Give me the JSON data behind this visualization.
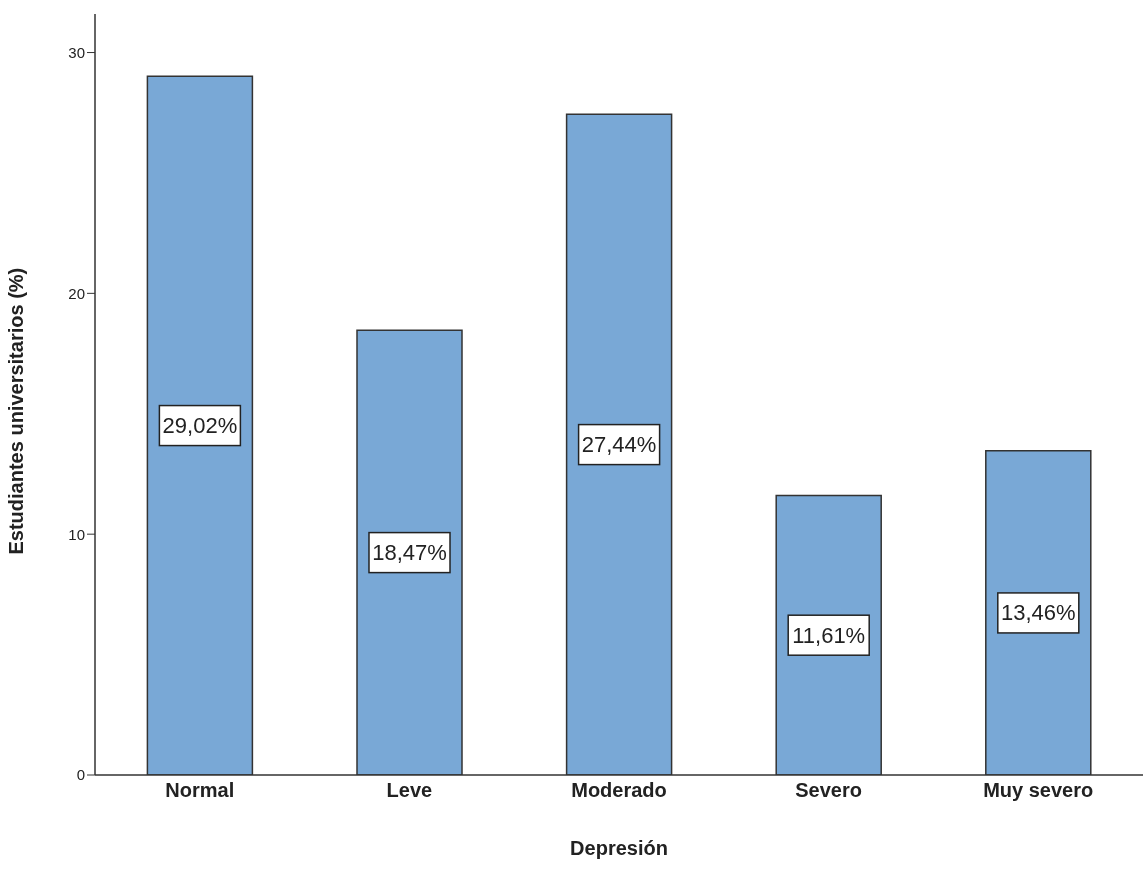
{
  "chart_data": {
    "type": "bar",
    "xlabel": "Depresión",
    "ylabel": "Estudiantes universitarios (%)",
    "categories": [
      "Normal",
      "Leve",
      "Moderado",
      "Severo",
      "Muy severo"
    ],
    "values": [
      29.02,
      18.47,
      27.44,
      11.61,
      13.46
    ],
    "value_labels": [
      "29,02%",
      "18,47%",
      "27,44%",
      "11,61%",
      "13,46%"
    ],
    "color": "#79a8d6",
    "ylim": [
      0,
      31.6
    ],
    "yticks": [
      0,
      10,
      20,
      30
    ],
    "grid": false,
    "legend": false
  }
}
